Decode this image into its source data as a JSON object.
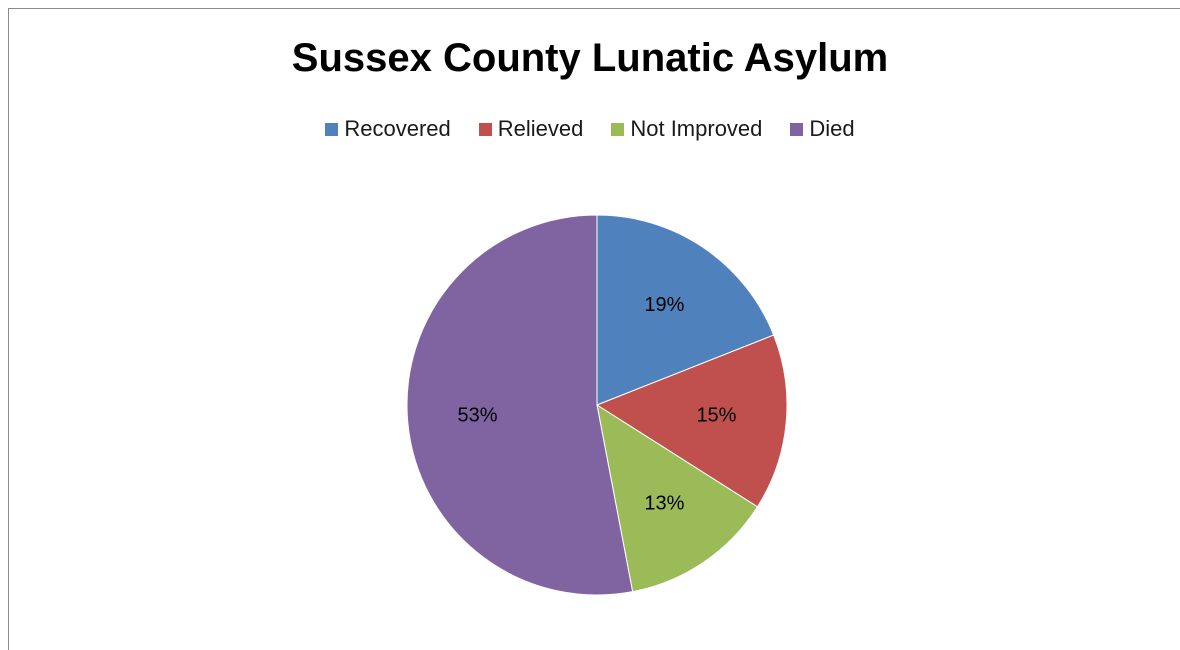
{
  "chart_data": {
    "type": "pie",
    "title": "Sussex County Lunatic Asylum",
    "categories": [
      "Recovered",
      "Relieved",
      "Not Improved",
      "Died"
    ],
    "values": [
      19,
      15,
      13,
      53
    ],
    "labels": [
      "19%",
      "15%",
      "13%",
      "53%"
    ],
    "colors": [
      "#4f81bd",
      "#c0504d",
      "#9bbb59",
      "#8064a2"
    ],
    "legend_position": "top"
  }
}
